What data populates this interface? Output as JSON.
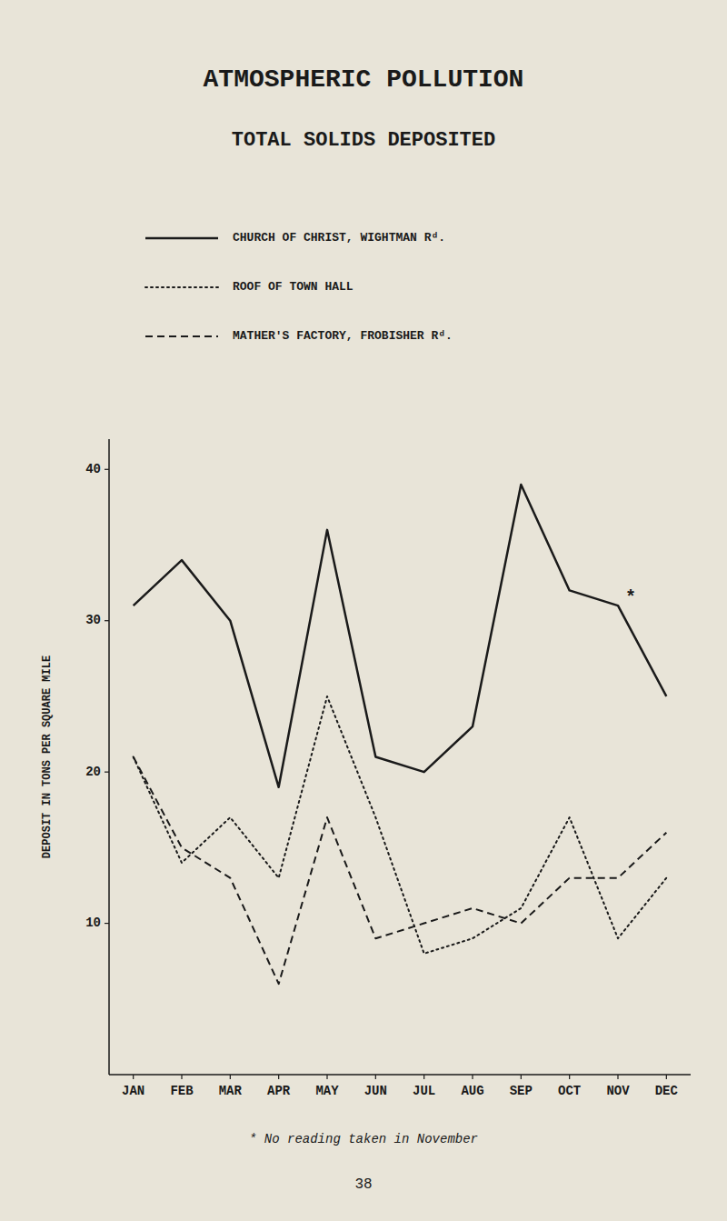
{
  "chart_data": {
    "type": "line",
    "title": "ATMOSPHERIC  POLLUTION",
    "subtitle": "TOTAL  SOLIDS  DEPOSITED",
    "y_label": "DEPOSIT IN TONS PER SQUARE MILE",
    "categories": [
      "JAN",
      "FEB",
      "MAR",
      "APR",
      "MAY",
      "JUN",
      "JUL",
      "AUG",
      "SEP",
      "OCT",
      "NOV",
      "DEC"
    ],
    "series": [
      {
        "name": "CHURCH OF CHRIST, WIGHTMAN  Rᵈ.",
        "color": "#1a1a1a",
        "line_style": "solid",
        "values": [
          31,
          34,
          30,
          19,
          36,
          21,
          20,
          23,
          39,
          32,
          31,
          25
        ]
      },
      {
        "name": "ROOF OF TOWN HALL",
        "color": "#1a1a1a",
        "line_style": "dotted",
        "values": [
          21,
          14,
          17,
          13,
          25,
          17,
          8,
          9,
          11,
          17,
          9,
          13
        ]
      },
      {
        "name": "MATHER'S FACTORY, FROBISHER  Rᵈ.",
        "color": "#1a1a1a",
        "line_style": "dashed",
        "values": [
          21,
          15,
          13,
          6,
          17,
          9,
          10,
          11,
          10,
          13,
          13,
          16
        ]
      }
    ],
    "ylim": [
      0,
      42
    ],
    "yticks": [
      10,
      20,
      30,
      40
    ],
    "grid": false,
    "annotations": [
      {
        "text": "*",
        "x": 10.15,
        "y": 31.5
      }
    ],
    "footnote": "*  No reading taken in November",
    "page_number": "38"
  }
}
